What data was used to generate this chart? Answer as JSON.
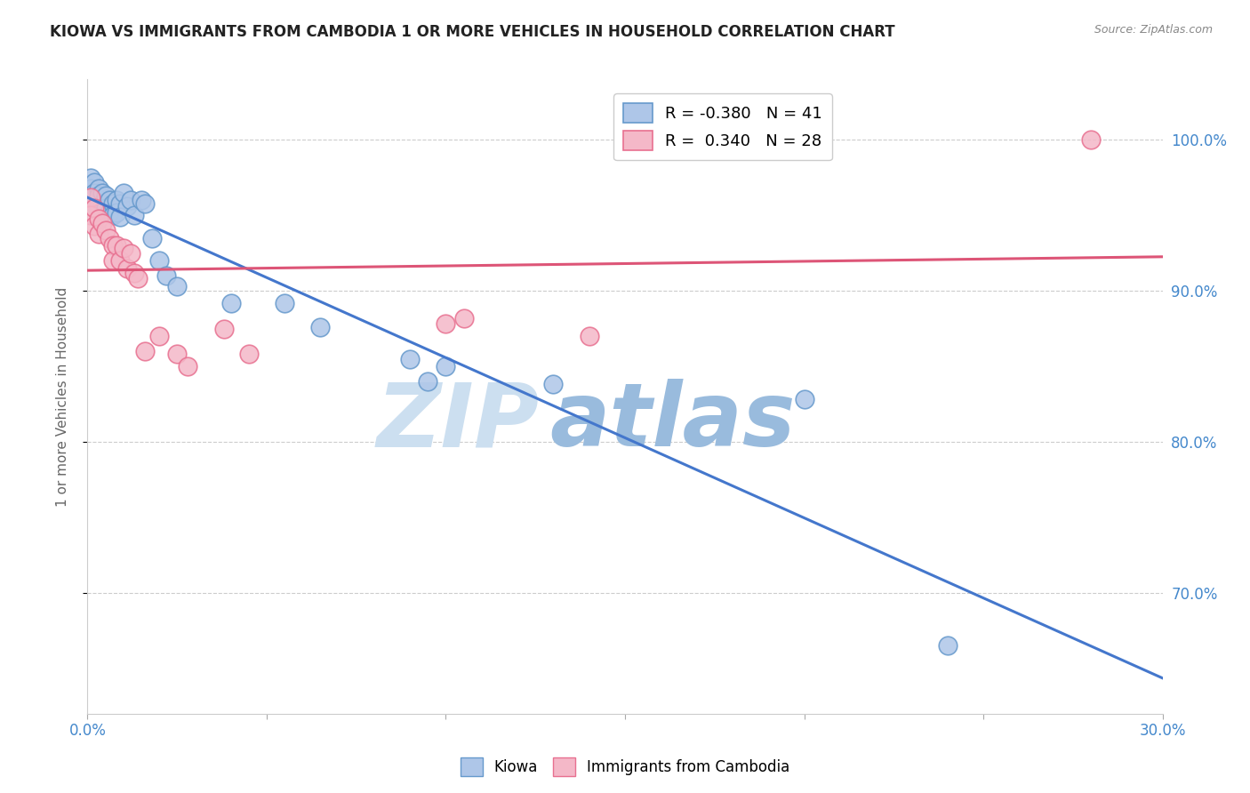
{
  "title": "KIOWA VS IMMIGRANTS FROM CAMBODIA 1 OR MORE VEHICLES IN HOUSEHOLD CORRELATION CHART",
  "source": "Source: ZipAtlas.com",
  "ylabel": "1 or more Vehicles in Household",
  "ylabel_right_ticks": [
    "100.0%",
    "90.0%",
    "80.0%",
    "70.0%"
  ],
  "ylabel_right_vals": [
    1.0,
    0.9,
    0.8,
    0.7
  ],
  "xlim": [
    0.0,
    0.3
  ],
  "ylim": [
    0.62,
    1.04
  ],
  "watermark_top": "ZIP",
  "watermark_bot": "atlas",
  "blue_R": "R = -0.380",
  "blue_N": "N = 41",
  "pink_R": "R =  0.340",
  "pink_N": "N = 28",
  "kiowa_x": [
    0.001,
    0.001,
    0.001,
    0.001,
    0.002,
    0.002,
    0.002,
    0.003,
    0.003,
    0.003,
    0.004,
    0.004,
    0.005,
    0.005,
    0.006,
    0.006,
    0.007,
    0.007,
    0.008,
    0.008,
    0.009,
    0.009,
    0.01,
    0.011,
    0.012,
    0.013,
    0.015,
    0.016,
    0.018,
    0.02,
    0.022,
    0.025,
    0.04,
    0.055,
    0.065,
    0.09,
    0.095,
    0.1,
    0.13,
    0.2,
    0.24
  ],
  "kiowa_y": [
    0.975,
    0.968,
    0.963,
    0.96,
    0.972,
    0.965,
    0.958,
    0.968,
    0.963,
    0.956,
    0.965,
    0.958,
    0.963,
    0.955,
    0.96,
    0.952,
    0.958,
    0.95,
    0.96,
    0.952,
    0.958,
    0.949,
    0.965,
    0.956,
    0.96,
    0.95,
    0.96,
    0.958,
    0.935,
    0.92,
    0.91,
    0.903,
    0.892,
    0.892,
    0.876,
    0.855,
    0.84,
    0.85,
    0.838,
    0.828,
    0.665
  ],
  "cambodia_x": [
    0.001,
    0.001,
    0.002,
    0.002,
    0.003,
    0.003,
    0.004,
    0.005,
    0.006,
    0.007,
    0.007,
    0.008,
    0.009,
    0.01,
    0.011,
    0.012,
    0.013,
    0.014,
    0.016,
    0.02,
    0.025,
    0.028,
    0.038,
    0.045,
    0.1,
    0.105,
    0.14,
    0.28
  ],
  "cambodia_y": [
    0.962,
    0.95,
    0.955,
    0.943,
    0.948,
    0.938,
    0.945,
    0.94,
    0.935,
    0.93,
    0.92,
    0.93,
    0.92,
    0.928,
    0.915,
    0.925,
    0.912,
    0.908,
    0.86,
    0.87,
    0.858,
    0.85,
    0.875,
    0.858,
    0.878,
    0.882,
    0.87,
    1.0
  ],
  "blue_color": "#aec6e8",
  "blue_edge": "#6699cc",
  "pink_color": "#f4b8c8",
  "pink_edge": "#e87090",
  "blue_line_color": "#4477cc",
  "pink_line_color": "#dd5577",
  "watermark_color": "#ccdff0",
  "watermark_color2": "#99bbdd",
  "grid_color": "#cccccc",
  "title_color": "#222222",
  "axis_label_color": "#4488cc",
  "source_color": "#888888"
}
